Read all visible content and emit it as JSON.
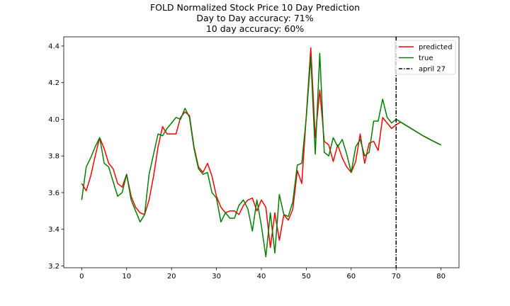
{
  "chart_data": {
    "type": "line",
    "title": "FOLD Normalized Stock Price 10 Day Prediction",
    "subtitle_lines": [
      "Day to Day accuracy: 71%",
      "10 day accuracy: 60%"
    ],
    "xlabel": "",
    "ylabel": "",
    "xlim": [
      -4,
      84
    ],
    "ylim": [
      3.19,
      4.45
    ],
    "xticks": [
      0,
      10,
      20,
      30,
      40,
      50,
      60,
      70,
      80
    ],
    "yticks": [
      3.2,
      3.4,
      3.6,
      3.8,
      4.0,
      4.2,
      4.4
    ],
    "ytick_labels": [
      "3.2",
      "3.4",
      "3.6",
      "3.8",
      "4.0",
      "4.2",
      "4.4"
    ],
    "grid": false,
    "legend_position": "top-right",
    "vline": {
      "x": 70,
      "label": "april 27",
      "color": "#000000",
      "style": "dashdot"
    },
    "series": [
      {
        "name": "predicted",
        "color": "#ff0000",
        "x": [
          0,
          1,
          2,
          3,
          4,
          5,
          6,
          7,
          8,
          9,
          10,
          11,
          12,
          13,
          14,
          15,
          16,
          17,
          18,
          19,
          20,
          21,
          22,
          23,
          24,
          25,
          26,
          27,
          28,
          29,
          30,
          31,
          32,
          33,
          34,
          35,
          36,
          37,
          38,
          39,
          40,
          41,
          42,
          43,
          44,
          45,
          46,
          47,
          48,
          49,
          50,
          51,
          52,
          53,
          54,
          55,
          56,
          57,
          58,
          59,
          60,
          61,
          62,
          63,
          64,
          65,
          66,
          67,
          68,
          69,
          70,
          71,
          72,
          73,
          74,
          75,
          76,
          77,
          78,
          79,
          80
        ],
        "values": [
          3.65,
          3.61,
          3.69,
          3.8,
          3.9,
          3.84,
          3.76,
          3.73,
          3.65,
          3.63,
          3.7,
          3.58,
          3.52,
          3.49,
          3.48,
          3.56,
          3.69,
          3.85,
          3.96,
          3.92,
          3.92,
          3.92,
          4.01,
          4.04,
          4.02,
          3.85,
          3.74,
          3.71,
          3.76,
          3.69,
          3.58,
          3.52,
          3.49,
          3.5,
          3.5,
          3.48,
          3.53,
          3.56,
          3.57,
          3.5,
          3.56,
          3.52,
          3.3,
          3.49,
          3.34,
          3.48,
          3.45,
          3.51,
          3.72,
          3.65,
          4.02,
          4.39,
          3.9,
          4.16,
          3.88,
          3.86,
          3.77,
          3.86,
          3.79,
          3.74,
          3.71,
          3.77,
          3.92,
          3.76,
          3.87,
          3.88,
          3.83,
          4.01,
          3.98,
          3.95,
          3.97,
          3.985,
          3.97,
          3.955,
          3.94,
          3.925,
          3.91,
          3.897,
          3.884,
          3.872,
          3.86
        ]
      },
      {
        "name": "true",
        "color": "#008000",
        "x": [
          0,
          1,
          2,
          3,
          4,
          5,
          6,
          7,
          8,
          9,
          10,
          11,
          12,
          13,
          14,
          15,
          16,
          17,
          18,
          19,
          20,
          21,
          22,
          23,
          24,
          25,
          26,
          27,
          28,
          29,
          30,
          31,
          32,
          33,
          34,
          35,
          36,
          37,
          38,
          39,
          40,
          41,
          42,
          43,
          44,
          45,
          46,
          47,
          48,
          49,
          50,
          51,
          52,
          53,
          54,
          55,
          56,
          57,
          58,
          59,
          60,
          61,
          62,
          63,
          64,
          65,
          66,
          67,
          68,
          69,
          70,
          71,
          72,
          73,
          74,
          75,
          76,
          77,
          78,
          79,
          80
        ],
        "values": [
          3.56,
          3.74,
          3.79,
          3.85,
          3.9,
          3.76,
          3.74,
          3.66,
          3.58,
          3.6,
          3.7,
          3.56,
          3.5,
          3.44,
          3.48,
          3.7,
          3.81,
          3.92,
          3.91,
          3.95,
          3.98,
          4.01,
          4.0,
          4.06,
          4.01,
          3.84,
          3.73,
          3.7,
          3.71,
          3.6,
          3.57,
          3.44,
          3.49,
          3.46,
          3.46,
          3.53,
          3.56,
          3.51,
          3.39,
          3.56,
          3.42,
          3.25,
          3.49,
          3.27,
          3.59,
          3.48,
          3.47,
          3.55,
          3.75,
          3.76,
          4.01,
          4.34,
          3.81,
          4.36,
          3.82,
          3.8,
          3.9,
          3.85,
          3.89,
          3.81,
          3.71,
          3.85,
          3.89,
          3.8,
          3.82,
          3.99,
          3.99,
          4.11,
          4.01,
          3.98,
          4.0,
          3.985,
          3.97,
          3.955,
          3.94,
          3.925,
          3.91,
          3.897,
          3.884,
          3.872,
          3.86
        ]
      }
    ]
  }
}
